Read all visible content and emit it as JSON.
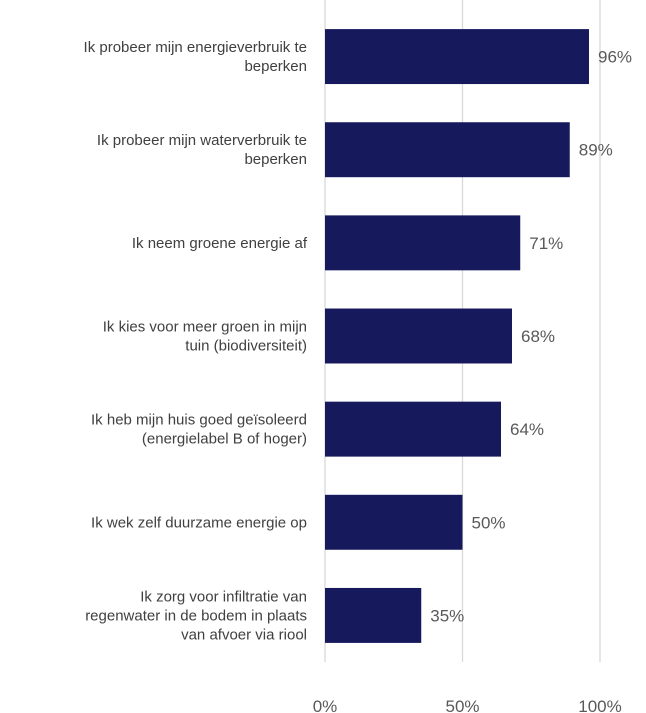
{
  "chart_data": {
    "type": "bar",
    "orientation": "horizontal",
    "categories": [
      [
        "Ik probeer mijn energieverbruik te",
        "beperken"
      ],
      [
        "Ik probeer mijn waterverbruik te",
        "beperken"
      ],
      [
        "Ik neem groene energie af"
      ],
      [
        "Ik kies voor meer groen in mijn",
        "tuin (biodiversiteit)"
      ],
      [
        "Ik heb mijn huis goed geïsoleerd",
        "(energielabel B of hoger)"
      ],
      [
        "Ik wek zelf duurzame energie op"
      ],
      [
        "Ik zorg voor infiltratie van",
        "regenwater in de bodem in plaats",
        "van afvoer via riool"
      ]
    ],
    "values": [
      96,
      89,
      71,
      68,
      64,
      50,
      35
    ],
    "value_labels": [
      "96%",
      "89%",
      "71%",
      "68%",
      "64%",
      "50%",
      "35%"
    ],
    "xlim": [
      0,
      100
    ],
    "ticks": [
      0,
      50,
      100
    ],
    "tick_labels": [
      "0%",
      "50%",
      "100%"
    ],
    "grid": true,
    "title": "",
    "xlabel": "",
    "ylabel": "",
    "colors": {
      "bar": "#161A5C",
      "grid": "#D9D9D9",
      "category_text": "#404040",
      "value_text": "#595959"
    }
  }
}
